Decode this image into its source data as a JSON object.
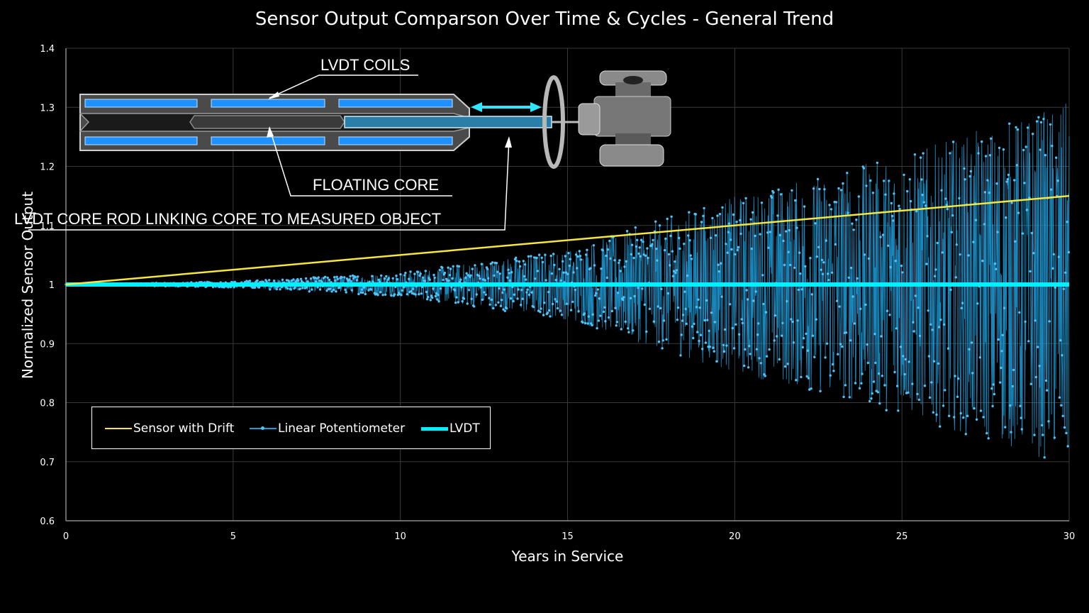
{
  "chart_data": {
    "type": "scatter",
    "title": "Sensor Output Comparson Over Time & Cycles - General Trend",
    "xlabel": "Years in Service",
    "ylabel": "Normalized Sensor Output",
    "xlim": [
      0,
      30
    ],
    "ylim": [
      0.6,
      1.4
    ],
    "x_ticks": [
      "0",
      "5",
      "10",
      "15",
      "20",
      "25",
      "30"
    ],
    "y_ticks": [
      "0.6",
      "0.7",
      "0.8",
      "0.9",
      "1",
      "1.1",
      "1.2",
      "1.3",
      "1.4"
    ],
    "grid": true,
    "legend_position": "bottom-left",
    "series": [
      {
        "name": "Sensor with Drift",
        "style": "line",
        "color": "#f5e642",
        "x": [
          0,
          30
        ],
        "y": [
          1.0,
          1.15
        ]
      },
      {
        "name": "Linear Potentiometer",
        "style": "noisy-scatter",
        "color": "#1e9cd8",
        "marker_color": "#4fc3f7",
        "center": 1.0,
        "spread_envelope_x": [
          0,
          5,
          10,
          15,
          20,
          25,
          30
        ],
        "spread_envelope_amplitude": [
          0.0,
          0.005,
          0.02,
          0.06,
          0.15,
          0.22,
          0.31
        ],
        "y_min_observed": 0.69,
        "y_max_observed": 1.31
      },
      {
        "name": "LVDT",
        "style": "line",
        "color": "#00f0ff",
        "x": [
          0,
          30
        ],
        "y": [
          1.0,
          1.0
        ]
      }
    ],
    "annotations": {
      "coils_label": "LVDT COILS",
      "core_label": "FLOATING CORE",
      "rod_label": "LVDT CORE ROD LINKING CORE TO MEASURED OBJECT"
    }
  },
  "colors": {
    "background": "#000000",
    "grid": "#3a3a3a",
    "axis": "#8a8a8a",
    "text": "#ffffff",
    "coil_blue": "#1e90ff",
    "housing_gray": "#4a4a4a"
  }
}
